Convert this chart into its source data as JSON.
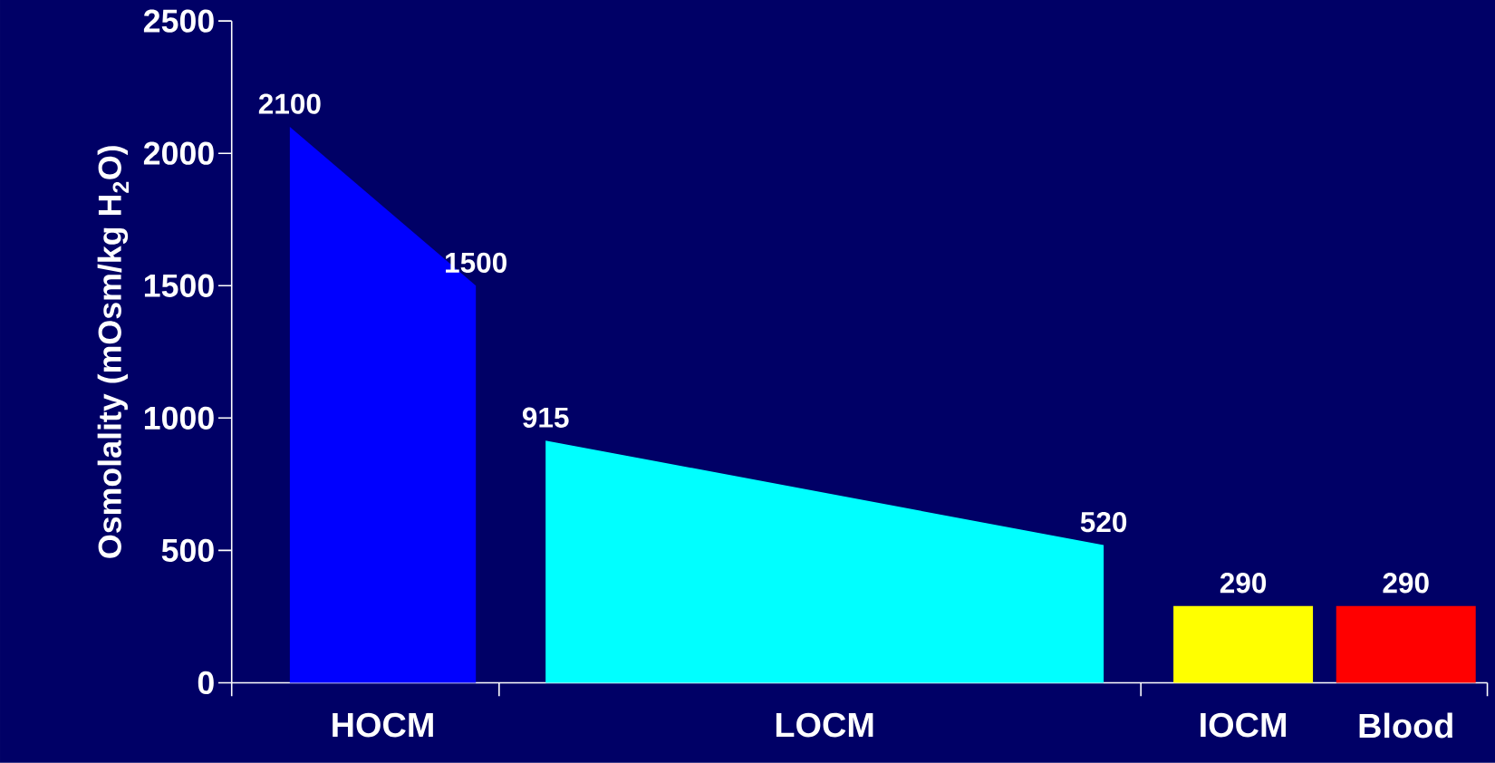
{
  "chart_data": {
    "type": "area",
    "ylabel": "Osmolality (mOsm/kg H$_{2}$O)",
    "categories": [
      null,
      null,
      null,
      null,
      null,
      null,
      null,
      null,
      null,
      null,
      null,
      null,
      null,
      null,
      null,
      null,
      null,
      null,
      null,
      null,
      null,
      null,
      null,
      null,
      null,
      null,
      null,
      null,
      null,
      null,
      null,
      null,
      null,
      null,
      null,
      null,
      null,
      null,
      null,
      null,
      null,
      null,
      null,
      null,
      null,
      null,
      null,
      null,
      null,
      null,
      null,
      null,
      null,
      null
    ],
    "series": [
      {
        "color": "#0000ff",
        "values": [
          null,
          null,
          2100,
          null,
          null,
          null,
          null,
          null,
          null,
          null,
          1500,
          null,
          null,
          null,
          null,
          null,
          null,
          null,
          null,
          null,
          null,
          null,
          null,
          null,
          null,
          null,
          null,
          null,
          null,
          null,
          null,
          null,
          null,
          null,
          null,
          null,
          null,
          null,
          null,
          null,
          null,
          null,
          null,
          null,
          null,
          null,
          null,
          null,
          null,
          null,
          null,
          null,
          null,
          null
        ],
        "value_labels": [
          null,
          null,
          "2100",
          null,
          null,
          null,
          null,
          null,
          null,
          null,
          "1500",
          null,
          null,
          null,
          null,
          null,
          null,
          null,
          null,
          null,
          null,
          null,
          null,
          null,
          null,
          null,
          null,
          null,
          null,
          null,
          null,
          null,
          null,
          null,
          null,
          null,
          null,
          null,
          null,
          null,
          null,
          null,
          null,
          null,
          null,
          null,
          null,
          null,
          null,
          null,
          null,
          null,
          null,
          null
        ]
      },
      {
        "color": "#00ffff",
        "values": [
          null,
          null,
          null,
          null,
          null,
          null,
          null,
          null,
          null,
          null,
          null,
          null,
          null,
          915,
          null,
          null,
          null,
          null,
          null,
          null,
          null,
          null,
          null,
          null,
          null,
          null,
          null,
          null,
          null,
          null,
          null,
          null,
          null,
          null,
          null,
          null,
          null,
          520,
          null,
          null,
          null,
          null,
          null,
          null,
          null,
          null,
          null,
          null,
          null,
          null,
          null,
          null,
          null,
          null
        ],
        "value_labels": [
          null,
          null,
          null,
          null,
          null,
          null,
          null,
          null,
          null,
          null,
          null,
          null,
          null,
          "915",
          null,
          null,
          null,
          null,
          null,
          null,
          null,
          null,
          null,
          null,
          null,
          null,
          null,
          null,
          null,
          null,
          null,
          null,
          null,
          null,
          null,
          null,
          null,
          "520",
          null,
          null,
          null,
          null,
          null,
          null,
          null,
          null,
          null,
          null,
          null,
          null,
          null,
          null,
          null,
          null
        ]
      },
      {
        "color": "#ffff00",
        "values": [
          null,
          null,
          null,
          null,
          null,
          null,
          null,
          null,
          null,
          null,
          null,
          null,
          null,
          null,
          null,
          null,
          null,
          null,
          null,
          null,
          null,
          null,
          null,
          null,
          null,
          null,
          null,
          null,
          null,
          null,
          null,
          null,
          null,
          null,
          null,
          null,
          null,
          null,
          null,
          null,
          290,
          null,
          null,
          290,
          null,
          null,
          290,
          null,
          null,
          null,
          null,
          null,
          null,
          null
        ],
        "value_labels": [
          null,
          null,
          null,
          null,
          null,
          null,
          null,
          null,
          null,
          null,
          null,
          null,
          null,
          null,
          null,
          null,
          null,
          null,
          null,
          null,
          null,
          null,
          null,
          null,
          null,
          null,
          null,
          null,
          null,
          null,
          null,
          null,
          null,
          null,
          null,
          null,
          null,
          null,
          null,
          null,
          null,
          null,
          null,
          "290",
          null,
          null,
          null,
          null,
          null,
          null,
          null,
          null,
          null,
          null
        ]
      },
      {
        "color": "#ff0000",
        "values": [
          null,
          null,
          null,
          null,
          null,
          null,
          null,
          null,
          null,
          null,
          null,
          null,
          null,
          null,
          null,
          null,
          null,
          null,
          null,
          null,
          null,
          null,
          null,
          null,
          null,
          null,
          null,
          null,
          null,
          null,
          null,
          null,
          null,
          null,
          null,
          null,
          null,
          null,
          null,
          null,
          null,
          null,
          null,
          null,
          null,
          null,
          null,
          290,
          null,
          null,
          290,
          null,
          null,
          290
        ],
        "value_labels": [
          null,
          null,
          null,
          null,
          null,
          null,
          null,
          null,
          null,
          null,
          null,
          null,
          null,
          null,
          null,
          null,
          null,
          null,
          null,
          null,
          null,
          null,
          null,
          null,
          null,
          null,
          null,
          null,
          null,
          null,
          null,
          null,
          null,
          null,
          null,
          null,
          null,
          null,
          null,
          null,
          null,
          null,
          null,
          null,
          null,
          null,
          null,
          null,
          null,
          null,
          "290",
          null,
          null,
          null
        ]
      }
    ],
    "annotations": [
      "HOCM",
      "LOCM",
      "IOCM",
      "Blood"
    ],
    "ylim": [
      0,
      2500
    ],
    "yticks": [
      0,
      500,
      1000,
      1500,
      2000,
      2500
    ]
  }
}
